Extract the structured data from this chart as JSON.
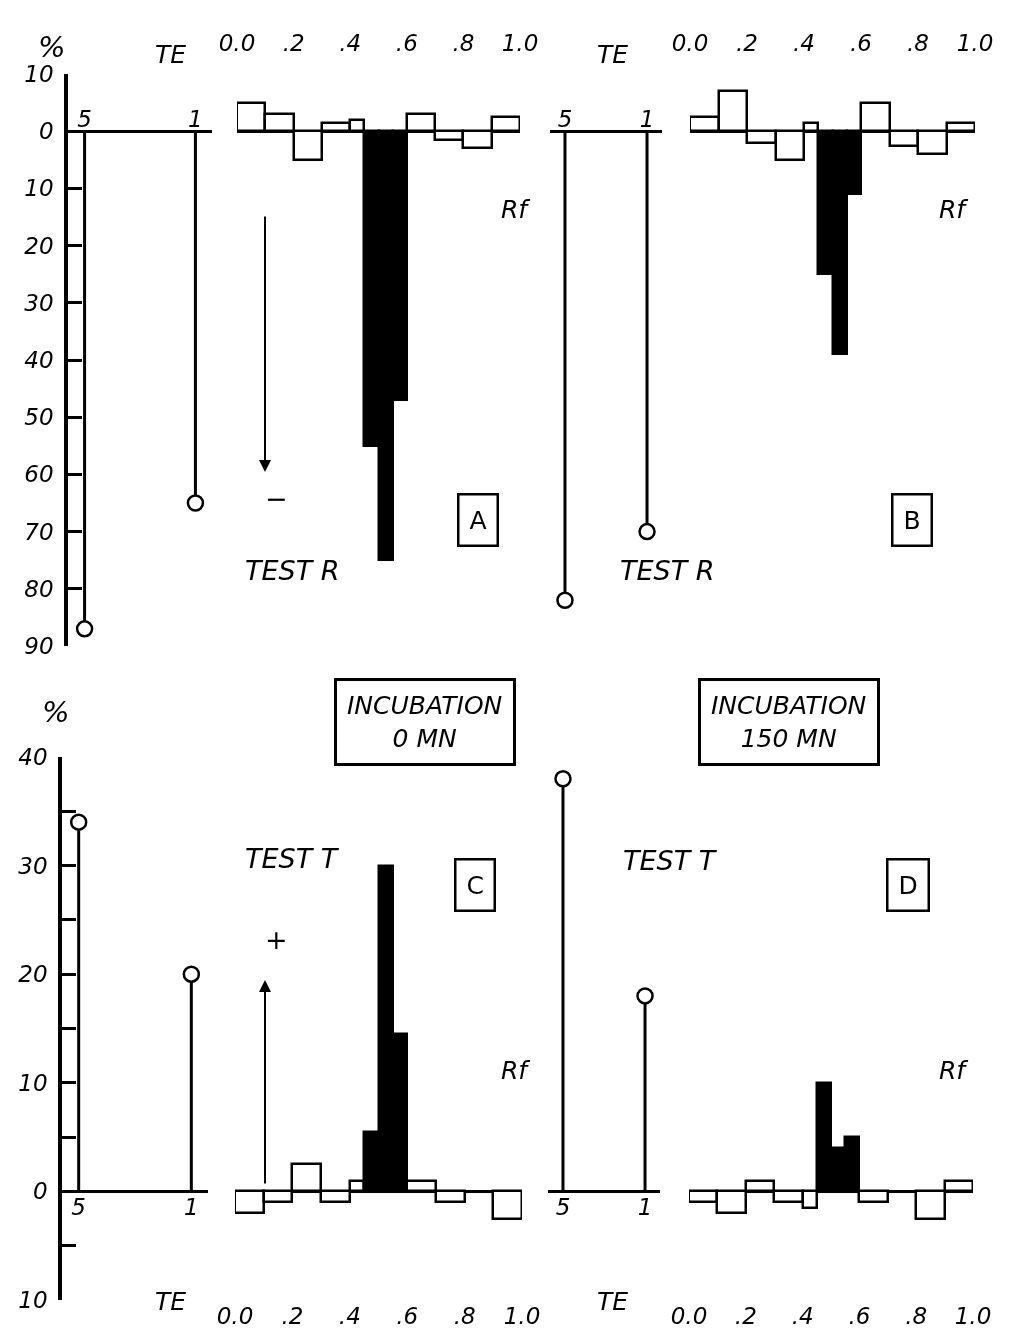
{
  "chart_data": [
    {
      "type": "lollipop",
      "xlabel": "TE",
      "ylabel": "%",
      "categories": [
        "5",
        "1"
      ],
      "values": [
        -87,
        -65
      ],
      "color": "#000000",
      "marker": "circle",
      "ylim": [
        -90,
        10
      ],
      "yticks": [
        {
          "value": 10,
          "label": "10"
        },
        0,
        {
          "value": -10,
          "label": "10"
        },
        {
          "value": -20,
          "label": "20"
        },
        {
          "value": -30,
          "label": "30"
        },
        {
          "value": -40,
          "label": "40"
        },
        {
          "value": -50,
          "label": "50"
        },
        {
          "value": -60,
          "label": "60"
        },
        {
          "value": -70,
          "label": "70"
        },
        {
          "value": -80,
          "label": "80"
        },
        {
          "value": -90,
          "label": "90"
        }
      ]
    },
    {
      "type": "histogram",
      "xlabel": "Rf",
      "bins": [
        0,
        0.1,
        0.2,
        0.3,
        0.4,
        0.45,
        0.5,
        0.55,
        0.6,
        0.7,
        0.8,
        0.9,
        1.0
      ],
      "values": [
        5,
        3,
        -5,
        1.5,
        2,
        -55,
        -75,
        -47,
        3,
        -1.5,
        -3,
        2.5
      ],
      "colors": [
        "#ffffff",
        "#ffffff",
        "#ffffff",
        "#ffffff",
        "#ffffff",
        "#000000",
        "#000000",
        "#000000",
        "#ffffff",
        "#ffffff",
        "#ffffff",
        "#ffffff"
      ],
      "xlim": [
        0,
        1
      ],
      "xticks": [
        {
          "value": 0,
          "label": "0.0"
        },
        {
          "value": 0.2,
          "label": ".2"
        },
        {
          "value": 0.4,
          "label": ".4"
        },
        {
          "value": 0.6,
          "label": ".6"
        },
        {
          "value": 0.8,
          "label": ".8"
        },
        {
          "value": 1,
          "label": "1.0"
        }
      ],
      "ylim": [
        -90,
        10
      ],
      "tick_labels": "x",
      "annotations": [
        "TEST R",
        "−",
        "A"
      ]
    },
    {
      "type": "lollipop",
      "xlabel": "TE",
      "categories": [
        "5",
        "1"
      ],
      "values": [
        -82,
        -70
      ],
      "color": "#000000",
      "marker": "circle",
      "ylim": [
        -90,
        10
      ],
      "tick_labels": "x"
    },
    {
      "type": "histogram",
      "xlabel": "Rf",
      "bins": [
        0,
        0.1,
        0.2,
        0.3,
        0.4,
        0.45,
        0.5,
        0.55,
        0.6,
        0.7,
        0.8,
        0.9,
        1.0
      ],
      "values": [
        2.5,
        7,
        -2,
        -5,
        1.5,
        -25,
        -39,
        -11,
        5,
        -2.5,
        -4,
        1.5
      ],
      "colors": [
        "#ffffff",
        "#ffffff",
        "#ffffff",
        "#ffffff",
        "#ffffff",
        "#000000",
        "#000000",
        "#000000",
        "#ffffff",
        "#ffffff",
        "#ffffff",
        "#ffffff"
      ],
      "xlim": [
        0,
        1
      ],
      "xticks": [
        {
          "value": 0,
          "label": "0.0"
        },
        {
          "value": 0.2,
          "label": ".2"
        },
        {
          "value": 0.4,
          "label": ".4"
        },
        {
          "value": 0.6,
          "label": ".6"
        },
        {
          "value": 0.8,
          "label": ".8"
        },
        {
          "value": 1,
          "label": "1.0"
        }
      ],
      "ylim": [
        -90,
        10
      ],
      "tick_labels": "x",
      "annotations": [
        "TEST R",
        "B"
      ]
    },
    {
      "type": "lollipop",
      "xlabel": "TE",
      "ylabel": "%",
      "categories": [
        "5",
        "1"
      ],
      "values": [
        34,
        20
      ],
      "color": "#000000",
      "marker": "circle",
      "ylim": [
        -10,
        40
      ],
      "yticks": [
        40,
        {
          "value": 35,
          "label": null
        },
        30,
        {
          "value": 25,
          "label": null
        },
        20,
        {
          "value": 15,
          "label": null
        },
        10,
        {
          "value": 5,
          "label": null
        },
        0,
        {
          "value": -5,
          "label": null
        },
        {
          "value": -10,
          "label": "10"
        }
      ]
    },
    {
      "type": "histogram",
      "xlabel": "Rf",
      "bins": [
        0,
        0.1,
        0.2,
        0.3,
        0.4,
        0.45,
        0.5,
        0.55,
        0.6,
        0.7,
        0.8,
        0.9,
        1.0
      ],
      "values": [
        -2,
        -1,
        2.5,
        -1,
        1,
        5.5,
        30,
        14.5,
        1,
        -1,
        0,
        -2.5
      ],
      "colors": [
        "#ffffff",
        "#ffffff",
        "#ffffff",
        "#ffffff",
        "#ffffff",
        "#000000",
        "#000000",
        "#000000",
        "#ffffff",
        "#ffffff",
        "#ffffff",
        "#ffffff"
      ],
      "xlim": [
        0,
        1
      ],
      "xticks": [
        {
          "value": 0,
          "label": "0.0"
        },
        {
          "value": 0.2,
          "label": ".2"
        },
        {
          "value": 0.4,
          "label": ".4"
        },
        {
          "value": 0.6,
          "label": ".6"
        },
        {
          "value": 0.8,
          "label": ".8"
        },
        {
          "value": 1,
          "label": "1.0"
        }
      ],
      "ylim": [
        -10,
        40
      ],
      "tick_labels": "x",
      "annotations": [
        "INCUBATION\n0 MN",
        "TEST T",
        "+",
        "C"
      ]
    },
    {
      "type": "lollipop",
      "xlabel": "TE",
      "categories": [
        "5",
        "1"
      ],
      "values": [
        38,
        18
      ],
      "color": "#000000",
      "marker": "circle",
      "ylim": [
        -10,
        40
      ],
      "tick_labels": "x"
    },
    {
      "type": "histogram",
      "xlabel": "Rf",
      "bins": [
        0,
        0.1,
        0.2,
        0.3,
        0.4,
        0.45,
        0.5,
        0.55,
        0.6,
        0.7,
        0.8,
        0.9,
        1.0
      ],
      "values": [
        -1,
        -2,
        1,
        -1,
        -1.5,
        10,
        4,
        5,
        -1,
        0,
        -2.5,
        1
      ],
      "colors": [
        "#ffffff",
        "#ffffff",
        "#ffffff",
        "#ffffff",
        "#ffffff",
        "#000000",
        "#000000",
        "#000000",
        "#ffffff",
        "#ffffff",
        "#ffffff",
        "#ffffff"
      ],
      "xlim": [
        0,
        1
      ],
      "xticks": [
        {
          "value": 0,
          "label": "0.0"
        },
        {
          "value": 0.2,
          "label": ".2"
        },
        {
          "value": 0.4,
          "label": ".4"
        },
        {
          "value": 0.6,
          "label": ".6"
        },
        {
          "value": 0.8,
          "label": ".8"
        },
        {
          "value": 1,
          "label": "1.0"
        }
      ],
      "ylim": [
        -10,
        40
      ],
      "tick_labels": "x",
      "annotations": [
        "INCUBATION\n150 MN",
        "TEST T",
        "D"
      ]
    }
  ]
}
